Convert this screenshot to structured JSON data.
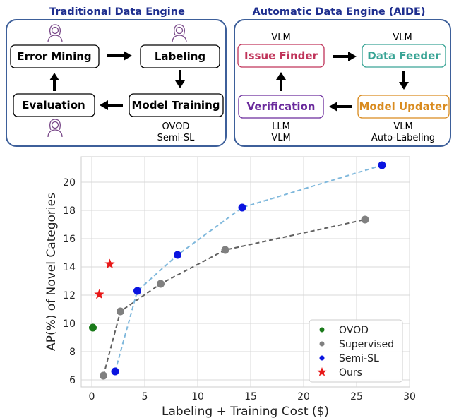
{
  "diagram": {
    "left_title": "Traditional Data Engine",
    "right_title": "Automatic Data Engine (AIDE)",
    "traditional_nodes": {
      "error_mining": "Error Mining",
      "labeling": "Labeling",
      "model_training": "Model Training",
      "evaluation": "Evaluation"
    },
    "traditional_notes": {
      "line1": "OVOD",
      "line2": "Semi-SL"
    },
    "aide_nodes": {
      "issue_finder": "Issue Finder",
      "data_feeder": "Data Feeder",
      "model_updater": "Model Updater",
      "verification": "Verification"
    },
    "aide_notes": {
      "issue_finder_top": "VLM",
      "data_feeder_top": "VLM",
      "verification_line1": "LLM",
      "verification_line2": "VLM",
      "model_updater_line1": "VLM",
      "model_updater_line2": "Auto-Labeling"
    },
    "colors": {
      "issue_finder": "#c0345a",
      "data_feeder": "#3aa596",
      "model_updater": "#d98b1f",
      "verification": "#6a2a9c",
      "panel_border": "#3d5f9a",
      "title": "#1f2f8f"
    },
    "icons": [
      "person-icon"
    ]
  },
  "chart_data": {
    "type": "scatter",
    "xlabel": "Labeling + Training Cost ($)",
    "ylabel": "AP(%) of Novel Categories",
    "xlim": [
      -1,
      30
    ],
    "ylim": [
      5.5,
      21.8
    ],
    "xticks": [
      0,
      5,
      10,
      15,
      20,
      25,
      30
    ],
    "yticks": [
      6,
      8,
      10,
      12,
      14,
      16,
      18,
      20
    ],
    "grid": true,
    "legend_position": "lower-right",
    "series": [
      {
        "name": "OVOD",
        "marker": "circle",
        "color": "#1a7a1a",
        "line": false,
        "points": [
          [
            0.1,
            9.7
          ]
        ]
      },
      {
        "name": "Supervised",
        "marker": "circle",
        "color": "#808080",
        "line": true,
        "line_color": "#606060",
        "points": [
          [
            1.1,
            6.3
          ],
          [
            2.7,
            10.85
          ],
          [
            6.5,
            12.8
          ],
          [
            12.6,
            15.2
          ],
          [
            25.8,
            17.35
          ]
        ]
      },
      {
        "name": "Semi-SL",
        "marker": "circle",
        "color": "#0a14e0",
        "line": true,
        "line_color": "#7fb8dc",
        "points": [
          [
            2.2,
            6.6
          ],
          [
            4.3,
            12.3
          ],
          [
            8.1,
            14.85
          ],
          [
            14.2,
            18.2
          ],
          [
            27.4,
            21.2
          ]
        ]
      },
      {
        "name": "Ours",
        "marker": "star",
        "color": "#e81818",
        "line": false,
        "points": [
          [
            0.7,
            12.05
          ],
          [
            1.7,
            14.2
          ]
        ]
      }
    ]
  }
}
